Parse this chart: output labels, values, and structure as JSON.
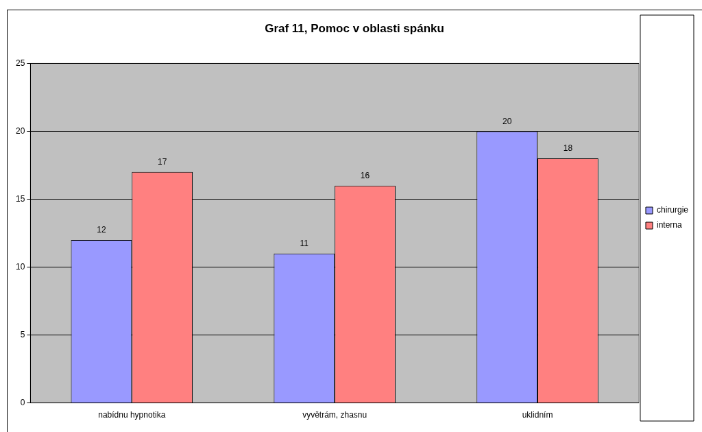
{
  "chart_data": {
    "type": "bar",
    "title": "Graf 11, Pomoc v oblasti spánku",
    "categories": [
      "nabídnu hypnotika",
      "vyvětrám, zhasnu",
      "uklidním"
    ],
    "series": [
      {
        "name": "chirurgie",
        "color": "#9999ff",
        "values": [
          12,
          11,
          20
        ]
      },
      {
        "name": "interna",
        "color": "#ff8080",
        "values": [
          17,
          16,
          18
        ]
      }
    ],
    "ylim": [
      0,
      25
    ],
    "yticks": [
      0,
      5,
      10,
      15,
      20,
      25
    ],
    "grid": "y",
    "legend": "right",
    "data_labels": true
  }
}
